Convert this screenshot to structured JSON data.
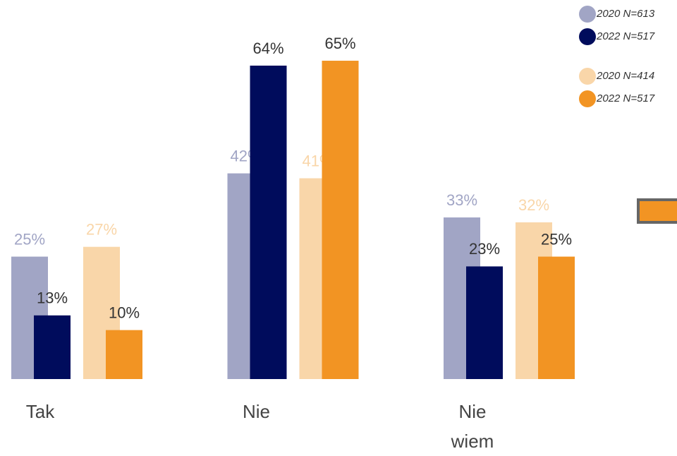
{
  "chart_data": {
    "type": "bar",
    "categories": [
      "Tak",
      "Nie",
      "Nie wiem"
    ],
    "series": [
      {
        "name": "2020 N=613",
        "color": "#a1a5c5",
        "values": [
          25,
          42,
          33
        ]
      },
      {
        "name": "2022 N=517",
        "color": "#000c5c",
        "values": [
          13,
          64,
          23
        ]
      },
      {
        "name": "2020 N=414",
        "color": "#f9d6a9",
        "values": [
          27,
          41,
          32
        ]
      },
      {
        "name": "2022 N=517",
        "color": "#f29423",
        "values": [
          10,
          65,
          25
        ]
      }
    ],
    "ylim": [
      0,
      77.4
    ],
    "legend": "top-right"
  }
}
